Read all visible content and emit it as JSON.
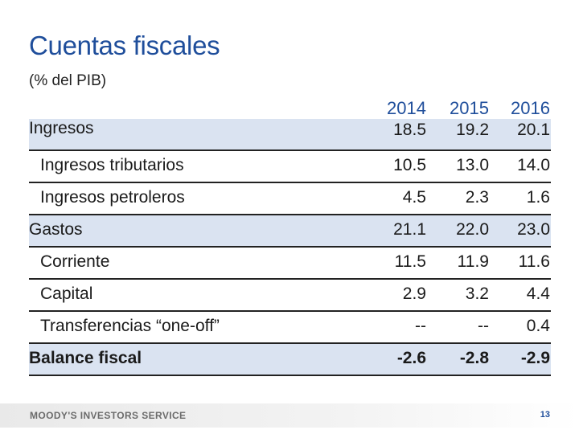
{
  "title": "Cuentas fiscales",
  "subtitle": "(% del PIB)",
  "years": [
    "2014",
    "2015",
    "2016"
  ],
  "rows": [
    {
      "label": "Ingresos",
      "values": [
        "18.5",
        "19.2",
        "20.1"
      ],
      "level": 0,
      "shaded": true,
      "bold": false
    },
    {
      "label": "Ingresos tributarios",
      "values": [
        "10.5",
        "13.0",
        "14.0"
      ],
      "level": 1,
      "shaded": false,
      "bold": false
    },
    {
      "label": "Ingresos petroleros",
      "values": [
        "4.5",
        "2.3",
        "1.6"
      ],
      "level": 1,
      "shaded": false,
      "bold": false
    },
    {
      "label": "Gastos",
      "values": [
        "21.1",
        "22.0",
        "23.0"
      ],
      "level": 0,
      "shaded": true,
      "bold": false
    },
    {
      "label": "Corriente",
      "values": [
        "11.5",
        "11.9",
        "11.6"
      ],
      "level": 1,
      "shaded": false,
      "bold": false
    },
    {
      "label": "Capital",
      "values": [
        "2.9",
        "3.2",
        "4.4"
      ],
      "level": 1,
      "shaded": false,
      "bold": false
    },
    {
      "label": "Transferencias “one-off”",
      "values": [
        "--",
        "--",
        "0.4"
      ],
      "level": 1,
      "shaded": false,
      "bold": false
    },
    {
      "label": "Balance fiscal",
      "values": [
        "-2.6",
        "-2.8",
        "-2.9"
      ],
      "level": 0,
      "shaded": true,
      "bold": true
    }
  ],
  "footer": {
    "brand": "MOODY'S INVESTORS SERVICE",
    "page_number": "13"
  },
  "colors": {
    "title": "#1f4e9b",
    "row_shade": "#dae3f1"
  }
}
